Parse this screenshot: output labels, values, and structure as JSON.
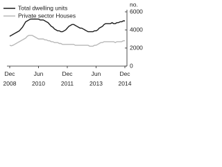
{
  "chart_data": {
    "type": "line",
    "y_label": "no.",
    "categories": [
      "Dec 2008",
      null,
      null,
      null,
      null,
      null,
      null,
      null,
      null,
      null,
      null,
      null,
      null,
      null,
      null,
      null,
      null,
      null,
      "Jun 2010",
      null,
      null,
      null,
      null,
      null,
      null,
      null,
      null,
      null,
      null,
      null,
      null,
      null,
      null,
      null,
      null,
      null,
      "Dec 2011",
      null,
      null,
      null,
      null,
      null,
      null,
      null,
      null,
      null,
      null,
      null,
      null,
      null,
      null,
      null,
      null,
      null,
      "Jun 2013",
      null,
      null,
      null,
      null,
      null,
      null,
      null,
      null,
      null,
      null,
      null,
      null,
      null,
      null,
      null,
      null,
      null,
      "Dec 2014"
    ],
    "series": [
      {
        "name": "Total dwelling units",
        "color": "#1a1a1a",
        "values": [
          3300,
          3400,
          3500,
          3600,
          3700,
          3800,
          3900,
          4100,
          4300,
          4600,
          4900,
          5000,
          5100,
          5200,
          5200,
          5200,
          5200,
          5200,
          5200,
          5100,
          5100,
          5100,
          5000,
          4900,
          4800,
          4600,
          4400,
          4300,
          4100,
          4000,
          3900,
          3900,
          3800,
          3800,
          3900,
          4000,
          4200,
          4400,
          4500,
          4600,
          4600,
          4500,
          4400,
          4300,
          4200,
          4200,
          4100,
          4000,
          3900,
          3800,
          3800,
          3800,
          3800,
          3900,
          3900,
          4000,
          4200,
          4300,
          4400,
          4600,
          4700,
          4700,
          4700,
          4700,
          4800,
          4700,
          4700,
          4800,
          4800,
          4900,
          4900,
          5000,
          5000
        ]
      },
      {
        "name": "Private sector Houses",
        "color": "#b8b8b8",
        "values": [
          2300,
          2250,
          2300,
          2400,
          2500,
          2600,
          2700,
          2800,
          2900,
          3000,
          3100,
          3300,
          3400,
          3400,
          3400,
          3300,
          3200,
          3100,
          3000,
          3000,
          3000,
          3000,
          2900,
          2900,
          2800,
          2800,
          2700,
          2700,
          2600,
          2600,
          2600,
          2500,
          2500,
          2400,
          2400,
          2400,
          2400,
          2400,
          2400,
          2400,
          2400,
          2300,
          2300,
          2300,
          2300,
          2300,
          2300,
          2300,
          2300,
          2300,
          2200,
          2200,
          2200,
          2300,
          2300,
          2400,
          2500,
          2600,
          2600,
          2700,
          2700,
          2700,
          2700,
          2700,
          2700,
          2700,
          2600,
          2700,
          2700,
          2700,
          2700,
          2800,
          2800
        ]
      }
    ],
    "ylim": [
      0,
      6000
    ],
    "yticks": [
      0,
      2000,
      4000,
      6000
    ]
  }
}
